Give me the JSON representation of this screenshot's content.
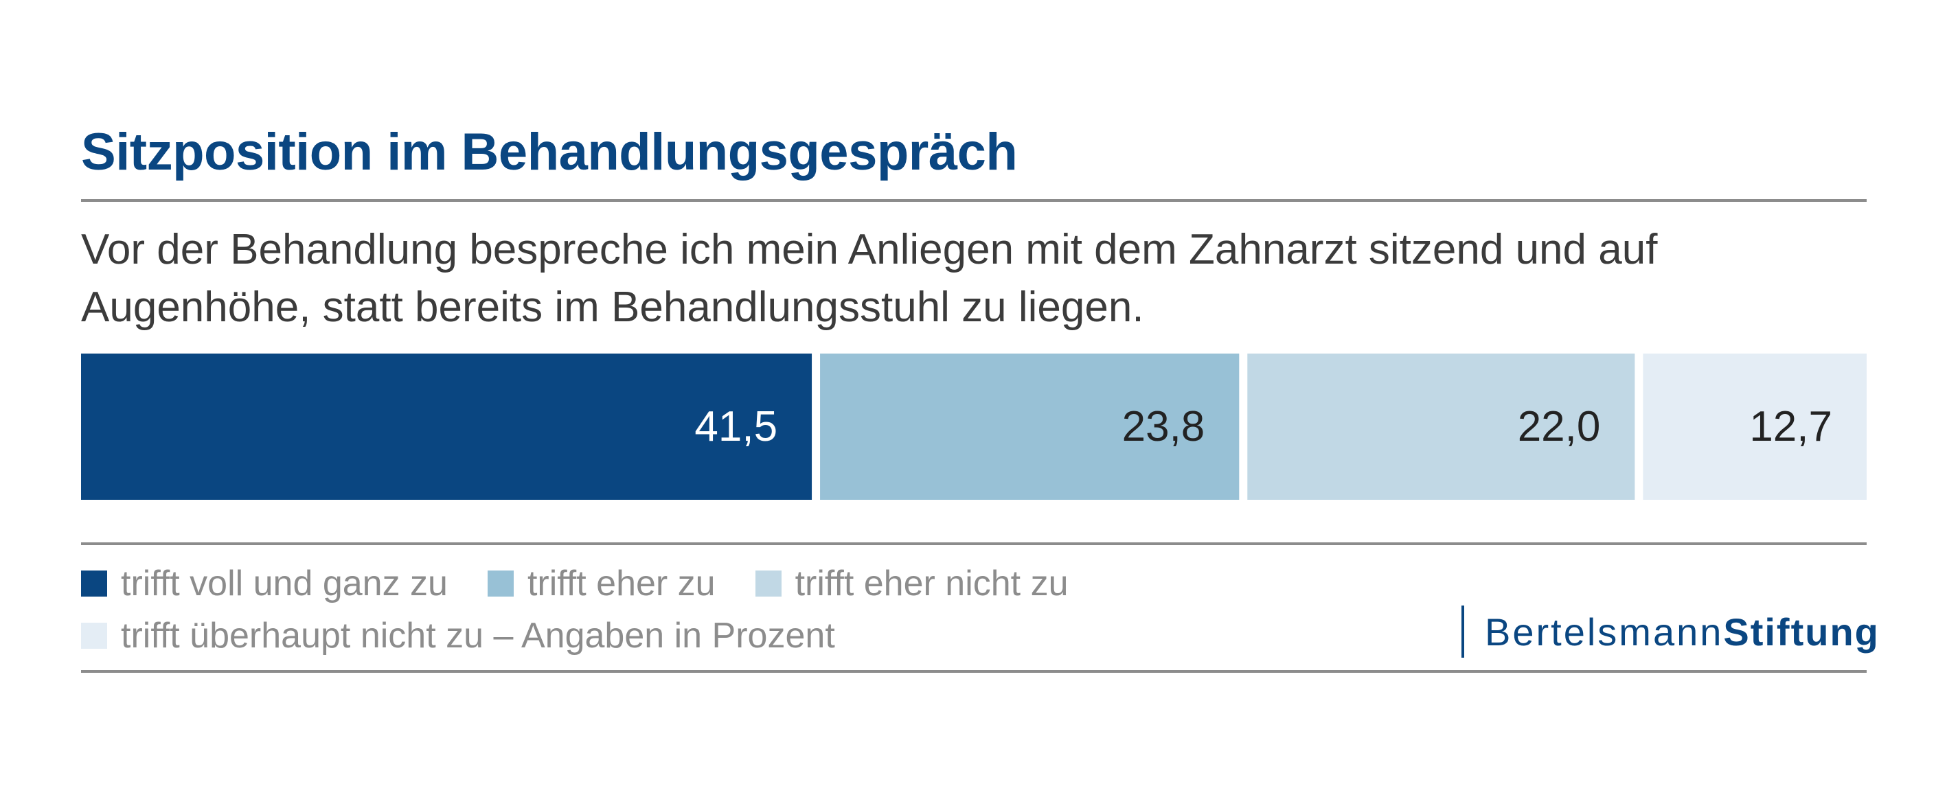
{
  "header": {
    "title": "Sitzposition im Behandlungsgespräch",
    "question_line1": "Vor der Behandlung bespreche ich mein Anliegen mit dem Zahnarzt sitzend und auf",
    "question_line2": "Augenhöhe, statt bereits im Behandlungsstuhl zu liegen."
  },
  "legend": {
    "note": "– Angaben in Prozent"
  },
  "brand": {
    "name_part1": "Bertelsmann",
    "name_part2": "Stiftung",
    "color": "#0a4681"
  },
  "chart_data": {
    "type": "bar",
    "orientation": "horizontal",
    "stacked": true,
    "title": "Sitzposition im Behandlungsgespräch",
    "unit": "Prozent",
    "series": [
      {
        "name": "trifft voll und ganz zu",
        "value": 41.5,
        "label": "41,5",
        "color": "#0a4681",
        "label_color": "#ffffff"
      },
      {
        "name": "trifft eher zu",
        "value": 23.8,
        "label": "23,8",
        "color": "#98c1d6",
        "label_color": "#222222"
      },
      {
        "name": "trifft eher nicht zu",
        "value": 22.0,
        "label": "22,0",
        "color": "#c1d8e5",
        "label_color": "#222222"
      },
      {
        "name": "trifft überhaupt nicht zu",
        "value": 12.7,
        "label": "12,7",
        "color": "#e4edf5",
        "label_color": "#222222"
      }
    ],
    "total": 100,
    "legend_position": "bottom",
    "grid": false
  }
}
